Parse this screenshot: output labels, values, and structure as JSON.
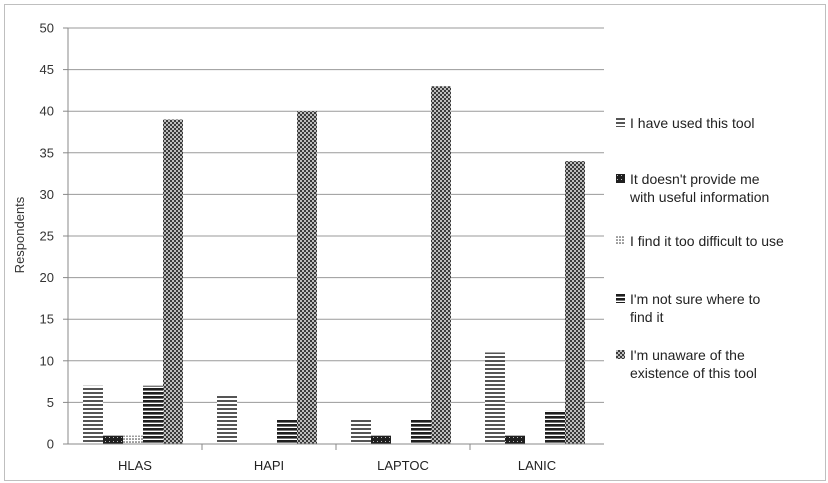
{
  "chart_data": {
    "type": "bar",
    "categories": [
      "HLAS",
      "HAPI",
      "LAPTOC",
      "LANIC"
    ],
    "series": [
      {
        "name": "I have used this tool",
        "values": [
          7,
          6,
          3,
          11
        ],
        "pattern": "hlines-light"
      },
      {
        "name": "It doesn't provide me\nwith useful information",
        "values": [
          1,
          0,
          1,
          1
        ],
        "pattern": "dark-dots"
      },
      {
        "name": "I find it too difficult to use",
        "values": [
          1,
          0,
          0,
          0
        ],
        "pattern": "light-dots"
      },
      {
        "name": "I'm not sure where to\nfind it",
        "values": [
          7,
          3,
          3,
          4
        ],
        "pattern": "hlines-bold"
      },
      {
        "name": "I'm unaware of the\nexistence of this tool",
        "values": [
          39,
          40,
          43,
          34
        ],
        "pattern": "crosshatch"
      }
    ],
    "ylabel": "Respondents",
    "xlabel": "",
    "title": "",
    "ylim": [
      0,
      50
    ],
    "ytick_step": 5,
    "grid": true,
    "legend_position": "right",
    "colors": {
      "bar_dark": "#2b2b2b",
      "bar_mid": "#6a6a6a",
      "grid": "#9a9a9a",
      "axis": "#888888"
    }
  }
}
